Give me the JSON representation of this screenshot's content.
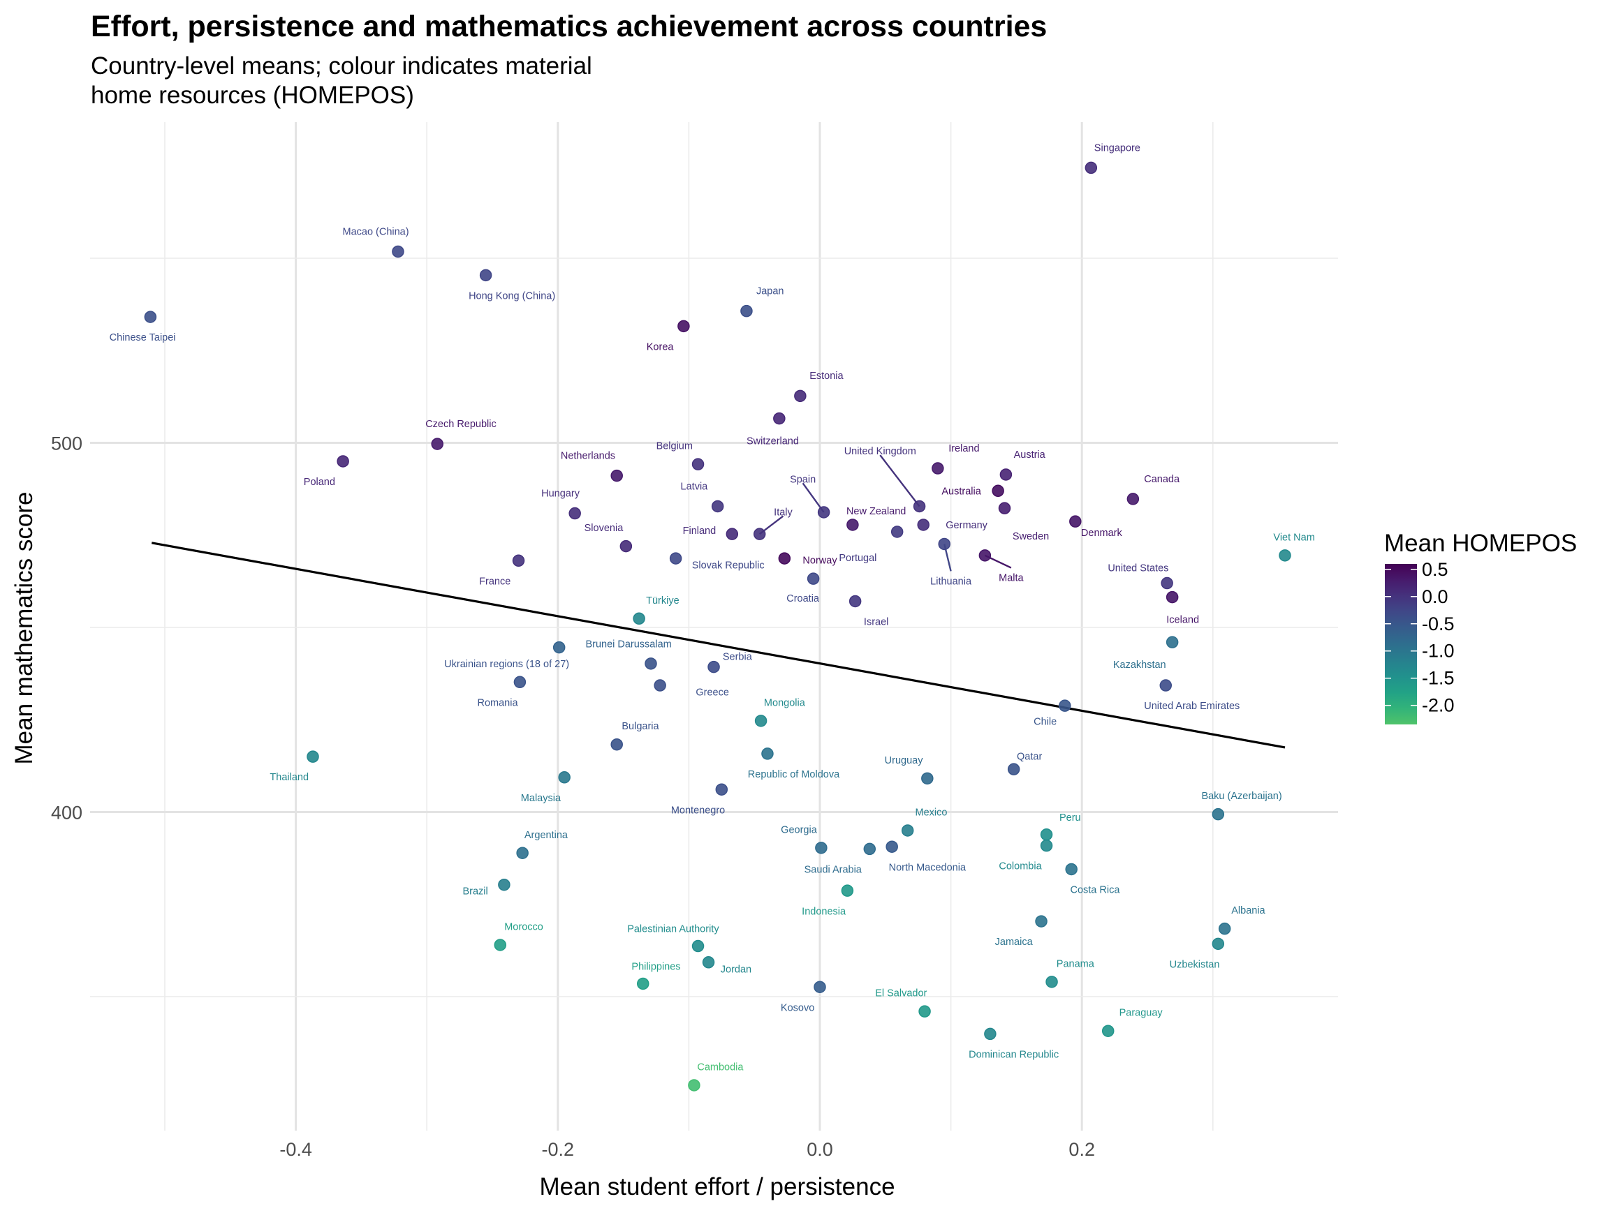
{
  "header": {
    "title": "Effort, persistence and mathematics achievement across countries",
    "subtitle": "Country-level means; colour indicates material\nhome resources (HOMEPOS)"
  },
  "chart_data": {
    "type": "scatter",
    "title": "Effort, persistence and mathematics achievement across countries",
    "subtitle": "Country-level means; colour indicates material home resources (HOMEPOS)",
    "xlabel": "Mean student effort / persistence",
    "ylabel": "Mean mathematics score",
    "xlim": [
      -0.53,
      0.4
    ],
    "ylim": [
      317,
      590
    ],
    "x_ticks": [
      -0.4,
      -0.2,
      0.0,
      0.2
    ],
    "x_tick_labels": [
      "-0.4",
      "-0.2",
      "0.0",
      "0.2"
    ],
    "y_ticks": [
      400,
      500
    ],
    "y_tick_labels": [
      "400",
      "500"
    ],
    "grid": true,
    "color_scale": {
      "name": "viridis",
      "title": "Mean HOMEPOS",
      "range": [
        -2.35,
        0.6
      ],
      "ticks": [
        0.5,
        0.0,
        -0.5,
        -1.0,
        -1.5,
        -2.0
      ],
      "tick_labels": [
        "0.5",
        "0.0",
        "-0.5",
        "-1.0",
        "-1.5",
        "-2.0"
      ],
      "legend_position": "right"
    },
    "trend_line": {
      "type": "linear",
      "color": "#000000",
      "x": [
        -0.51,
        0.355
      ],
      "y": [
        472.9,
        417.5
      ]
    },
    "points": [
      {
        "country": "Singapore",
        "x": 0.207,
        "y": 574.5,
        "homepos": 0.05,
        "label_dx": 0.02,
        "label_dy": 5.5
      },
      {
        "country": "Macao (China)",
        "x": -0.322,
        "y": 551.8,
        "homepos": -0.3,
        "label_dx": -0.017,
        "label_dy": 5.5
      },
      {
        "country": "Hong Kong (China)",
        "x": -0.255,
        "y": 545.4,
        "homepos": -0.25,
        "label_dx": 0.02,
        "label_dy": -5.5
      },
      {
        "country": "Chinese Taipei",
        "x": -0.511,
        "y": 534.1,
        "homepos": -0.4,
        "label_dx": -0.006,
        "label_dy": -5.5
      },
      {
        "country": "Japan",
        "x": -0.056,
        "y": 535.7,
        "homepos": -0.4,
        "label_dx": 0.018,
        "label_dy": 5.5
      },
      {
        "country": "Korea",
        "x": -0.104,
        "y": 531.6,
        "homepos": 0.4,
        "label_dx": -0.018,
        "label_dy": -5.5
      },
      {
        "country": "Estonia",
        "x": -0.015,
        "y": 512.7,
        "homepos": 0.1,
        "label_dx": 0.02,
        "label_dy": 5.5
      },
      {
        "country": "Switzerland",
        "x": -0.031,
        "y": 506.6,
        "homepos": 0.15,
        "label_dx": -0.005,
        "label_dy": -6
      },
      {
        "country": "Czech Republic",
        "x": -0.292,
        "y": 499.7,
        "homepos": 0.3,
        "label_dx": 0.018,
        "label_dy": 5.5
      },
      {
        "country": "Poland",
        "x": -0.364,
        "y": 495.0,
        "homepos": 0.15,
        "label_dx": -0.018,
        "label_dy": -5.5
      },
      {
        "country": "Netherlands",
        "x": -0.155,
        "y": 491.1,
        "homepos": 0.3,
        "label_dx": -0.022,
        "label_dy": 5.5
      },
      {
        "country": "Belgium",
        "x": -0.093,
        "y": 494.2,
        "homepos": 0.0,
        "label_dx": -0.018,
        "label_dy": 5
      },
      {
        "country": "Ireland",
        "x": 0.09,
        "y": 493.1,
        "homepos": 0.3,
        "label_dx": 0.02,
        "label_dy": 5.5
      },
      {
        "country": "Austria",
        "x": 0.142,
        "y": 491.4,
        "homepos": 0.2,
        "label_dx": 0.018,
        "label_dy": 5.5
      },
      {
        "country": "Australia",
        "x": 0.136,
        "y": 487.0,
        "homepos": 0.45,
        "label_dx": -0.028,
        "label_dy": 0
      },
      {
        "country": "Sweden",
        "x": 0.141,
        "y": 482.3,
        "homepos": 0.25,
        "label_dx": 0.02,
        "label_dy": -7.5
      },
      {
        "country": "United Kingdom",
        "x": 0.076,
        "y": 482.8,
        "homepos": 0.0,
        "label_dx": -0.03,
        "label_dy": 15,
        "leader": true
      },
      {
        "country": "Canada",
        "x": 0.239,
        "y": 484.8,
        "homepos": 0.3,
        "label_dx": 0.022,
        "label_dy": 5.5
      },
      {
        "country": "Denmark",
        "x": 0.195,
        "y": 478.7,
        "homepos": 0.35,
        "label_dx": 0.02,
        "label_dy": -3
      },
      {
        "country": "Latvia",
        "x": -0.078,
        "y": 482.8,
        "homepos": -0.05,
        "label_dx": -0.018,
        "label_dy": 5.5
      },
      {
        "country": "Spain",
        "x": 0.003,
        "y": 481.2,
        "homepos": -0.05,
        "label_dx": -0.016,
        "label_dy": 9,
        "leader": true
      },
      {
        "country": "Hungary",
        "x": -0.187,
        "y": 480.9,
        "homepos": 0.05,
        "label_dx": -0.011,
        "label_dy": 5.5
      },
      {
        "country": "New Zealand",
        "x": 0.025,
        "y": 477.8,
        "homepos": 0.3,
        "label_dx": 0.018,
        "label_dy": 3.8
      },
      {
        "country": "Germany",
        "x": 0.079,
        "y": 477.8,
        "homepos": 0.05,
        "label_dx": 0.033,
        "label_dy": 0
      },
      {
        "country": "Portugal",
        "x": 0.059,
        "y": 475.9,
        "homepos": -0.1,
        "label_dx": -0.03,
        "label_dy": -7
      },
      {
        "country": "Finland",
        "x": -0.067,
        "y": 475.3,
        "homepos": 0.1,
        "label_dx": -0.025,
        "label_dy": 1
      },
      {
        "country": "Italy",
        "x": -0.046,
        "y": 475.3,
        "homepos": 0.0,
        "label_dx": 0.018,
        "label_dy": 6,
        "leader": true
      },
      {
        "country": "Slovenia",
        "x": -0.148,
        "y": 472.0,
        "homepos": 0.1,
        "label_dx": -0.017,
        "label_dy": 5
      },
      {
        "country": "Lithuania",
        "x": 0.095,
        "y": 472.6,
        "homepos": -0.25,
        "label_dx": 0.005,
        "label_dy": -10,
        "leader": true
      },
      {
        "country": "Malta",
        "x": 0.126,
        "y": 469.5,
        "homepos": 0.35,
        "label_dx": 0.02,
        "label_dy": -6,
        "leader": true
      },
      {
        "country": "Norway",
        "x": -0.027,
        "y": 468.7,
        "homepos": 0.5,
        "label_dx": 0.027,
        "label_dy": -0.5
      },
      {
        "country": "Slovak Republic",
        "x": -0.11,
        "y": 468.7,
        "homepos": -0.3,
        "label_dx": 0.04,
        "label_dy": -1.8
      },
      {
        "country": "France",
        "x": -0.23,
        "y": 468.1,
        "homepos": 0.0,
        "label_dx": -0.018,
        "label_dy": -5.5
      },
      {
        "country": "Viet Nam",
        "x": 0.355,
        "y": 469.5,
        "homepos": -1.35,
        "label_dx": 0.007,
        "label_dy": 5
      },
      {
        "country": "Croatia",
        "x": -0.005,
        "y": 463.2,
        "homepos": -0.3,
        "label_dx": -0.008,
        "label_dy": -5.3
      },
      {
        "country": "United States",
        "x": 0.265,
        "y": 462.0,
        "homepos": -0.05,
        "label_dx": -0.022,
        "label_dy": 4.2
      },
      {
        "country": "Iceland",
        "x": 0.269,
        "y": 458.2,
        "homepos": 0.35,
        "label_dx": 0.008,
        "label_dy": -6
      },
      {
        "country": "Israel",
        "x": 0.027,
        "y": 457.1,
        "homepos": -0.05,
        "label_dx": 0.016,
        "label_dy": -5.5
      },
      {
        "country": "Türkiye",
        "x": -0.138,
        "y": 452.4,
        "homepos": -1.3,
        "label_dx": 0.018,
        "label_dy": 5
      },
      {
        "country": "Kazakhstan",
        "x": 0.269,
        "y": 446.0,
        "homepos": -0.9,
        "label_dx": -0.025,
        "label_dy": -6
      },
      {
        "country": "Brunei Darussalam",
        "x": -0.199,
        "y": 444.6,
        "homepos": -0.7,
        "label_dx": 0.053,
        "label_dy": 1
      },
      {
        "country": "Ukrainian regions (18 of 27)",
        "x": -0.129,
        "y": 440.2,
        "homepos": -0.45,
        "label_dx": -0.11,
        "label_dy": 0
      },
      {
        "country": "Serbia",
        "x": -0.081,
        "y": 439.3,
        "homepos": -0.35,
        "label_dx": 0.018,
        "label_dy": 2.9
      },
      {
        "country": "Romania",
        "x": -0.229,
        "y": 435.2,
        "homepos": -0.45,
        "label_dx": -0.017,
        "label_dy": -5.5
      },
      {
        "country": "Greece",
        "x": -0.122,
        "y": 434.3,
        "homepos": -0.4,
        "label_dx": 0.04,
        "label_dy": -1.8
      },
      {
        "country": "United Arab Emirates",
        "x": 0.264,
        "y": 434.3,
        "homepos": -0.35,
        "label_dx": 0.02,
        "label_dy": -5.5
      },
      {
        "country": "Chile",
        "x": 0.187,
        "y": 428.8,
        "homepos": -0.5,
        "label_dx": -0.015,
        "label_dy": -4.2
      },
      {
        "country": "Mongolia",
        "x": -0.045,
        "y": 424.7,
        "homepos": -1.35,
        "label_dx": 0.018,
        "label_dy": 5
      },
      {
        "country": "Bulgaria",
        "x": -0.155,
        "y": 418.3,
        "homepos": -0.45,
        "label_dx": 0.018,
        "label_dy": 5
      },
      {
        "country": "Republic of Moldova",
        "x": -0.04,
        "y": 415.8,
        "homepos": -0.95,
        "label_dx": 0.02,
        "label_dy": -5.5
      },
      {
        "country": "Thailand",
        "x": -0.387,
        "y": 415.0,
        "homepos": -1.3,
        "label_dx": -0.018,
        "label_dy": -5.5
      },
      {
        "country": "Qatar",
        "x": 0.148,
        "y": 411.6,
        "homepos": -0.45,
        "label_dx": 0.012,
        "label_dy": 3.5
      },
      {
        "country": "Malaysia",
        "x": -0.195,
        "y": 409.4,
        "homepos": -1.05,
        "label_dx": -0.018,
        "label_dy": -5.5
      },
      {
        "country": "Uruguay",
        "x": 0.082,
        "y": 409.1,
        "homepos": -0.8,
        "label_dx": -0.018,
        "label_dy": 5
      },
      {
        "country": "Montenegro",
        "x": -0.075,
        "y": 406.1,
        "homepos": -0.4,
        "label_dx": -0.018,
        "label_dy": -5.5
      },
      {
        "country": "Baku (Azerbaijan)",
        "x": 0.304,
        "y": 399.4,
        "homepos": -0.95,
        "label_dx": 0.018,
        "label_dy": 5
      },
      {
        "country": "Mexico",
        "x": 0.067,
        "y": 395.0,
        "homepos": -1.15,
        "label_dx": 0.018,
        "label_dy": 5
      },
      {
        "country": "Peru",
        "x": 0.173,
        "y": 393.9,
        "homepos": -1.45,
        "label_dx": 0.018,
        "label_dy": 4.7
      },
      {
        "country": "Colombia",
        "x": 0.173,
        "y": 390.9,
        "homepos": -1.35,
        "label_dx": -0.02,
        "label_dy": -5.5
      },
      {
        "country": "Georgia",
        "x": 0.001,
        "y": 390.3,
        "homepos": -0.85,
        "label_dx": -0.017,
        "label_dy": 5
      },
      {
        "country": "Saudi Arabia",
        "x": 0.038,
        "y": 390.0,
        "homepos": -0.85,
        "label_dx": -0.028,
        "label_dy": -5.5
      },
      {
        "country": "North Macedonia",
        "x": 0.055,
        "y": 390.6,
        "homepos": -0.55,
        "label_dx": 0.027,
        "label_dy": -5.5
      },
      {
        "country": "Argentina",
        "x": -0.227,
        "y": 388.9,
        "homepos": -0.9,
        "label_dx": 0.018,
        "label_dy": 5
      },
      {
        "country": "Costa Rica",
        "x": 0.192,
        "y": 384.5,
        "homepos": -0.95,
        "label_dx": 0.018,
        "label_dy": -5.5
      },
      {
        "country": "Brazil",
        "x": -0.241,
        "y": 380.3,
        "homepos": -1.15,
        "label_dx": -0.022,
        "label_dy": -1.7
      },
      {
        "country": "Indonesia",
        "x": 0.021,
        "y": 378.7,
        "homepos": -1.6,
        "label_dx": -0.018,
        "label_dy": -5.5
      },
      {
        "country": "Jamaica",
        "x": 0.169,
        "y": 370.4,
        "homepos": -0.95,
        "label_dx": -0.021,
        "label_dy": -5.5
      },
      {
        "country": "Albania",
        "x": 0.309,
        "y": 368.4,
        "homepos": -0.95,
        "label_dx": 0.018,
        "label_dy": 5
      },
      {
        "country": "Morocco",
        "x": -0.244,
        "y": 364.0,
        "homepos": -1.7,
        "label_dx": 0.018,
        "label_dy": 5
      },
      {
        "country": "Palestinian Authority",
        "x": -0.093,
        "y": 363.7,
        "homepos": -1.4,
        "label_dx": -0.019,
        "label_dy": 4.7
      },
      {
        "country": "Uzbekistan",
        "x": 0.304,
        "y": 364.3,
        "homepos": -1.3,
        "label_dx": -0.018,
        "label_dy": -5.5
      },
      {
        "country": "Jordan",
        "x": -0.085,
        "y": 359.3,
        "homepos": -1.3,
        "label_dx": 0.021,
        "label_dy": -1.8
      },
      {
        "country": "Panama",
        "x": 0.177,
        "y": 354.0,
        "homepos": -1.4,
        "label_dx": 0.018,
        "label_dy": 5
      },
      {
        "country": "Philippines",
        "x": -0.135,
        "y": 353.5,
        "homepos": -1.7,
        "label_dx": 0.01,
        "label_dy": 4.7
      },
      {
        "country": "Kosovo",
        "x": 0.0,
        "y": 352.6,
        "homepos": -0.6,
        "label_dx": -0.017,
        "label_dy": -5.5
      },
      {
        "country": "El Salvador",
        "x": 0.08,
        "y": 346.0,
        "homepos": -1.6,
        "label_dx": -0.018,
        "label_dy": 5
      },
      {
        "country": "Dominican Republic",
        "x": 0.13,
        "y": 339.9,
        "homepos": -1.3,
        "label_dx": 0.018,
        "label_dy": -5.5
      },
      {
        "country": "Paraguay",
        "x": 0.22,
        "y": 340.7,
        "homepos": -1.55,
        "label_dx": 0.025,
        "label_dy": 5
      },
      {
        "country": "Cambodia",
        "x": -0.096,
        "y": 326.0,
        "homepos": -2.25,
        "label_dx": 0.02,
        "label_dy": 5
      }
    ]
  }
}
